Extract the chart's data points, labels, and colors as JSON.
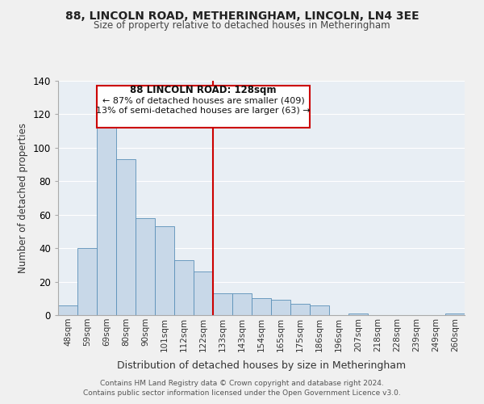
{
  "title_line1": "88, LINCOLN ROAD, METHERINGHAM, LINCOLN, LN4 3EE",
  "title_line2": "Size of property relative to detached houses in Metheringham",
  "xlabel": "Distribution of detached houses by size in Metheringham",
  "ylabel": "Number of detached properties",
  "footer_line1": "Contains HM Land Registry data © Crown copyright and database right 2024.",
  "footer_line2": "Contains public sector information licensed under the Open Government Licence v3.0.",
  "bar_labels": [
    "48sqm",
    "59sqm",
    "69sqm",
    "80sqm",
    "90sqm",
    "101sqm",
    "112sqm",
    "122sqm",
    "133sqm",
    "143sqm",
    "154sqm",
    "165sqm",
    "175sqm",
    "186sqm",
    "196sqm",
    "207sqm",
    "218sqm",
    "228sqm",
    "239sqm",
    "249sqm",
    "260sqm"
  ],
  "bar_values": [
    6,
    40,
    115,
    93,
    58,
    53,
    33,
    26,
    13,
    13,
    10,
    9,
    7,
    6,
    0,
    1,
    0,
    0,
    0,
    0,
    1
  ],
  "bar_color": "#c8d8e8",
  "bar_edge_color": "#5a90b8",
  "ylim": [
    0,
    140
  ],
  "yticks": [
    0,
    20,
    40,
    60,
    80,
    100,
    120,
    140
  ],
  "vline_x_index": 7.5,
  "vline_color": "#cc0000",
  "annotation_title": "88 LINCOLN ROAD: 128sqm",
  "annotation_line1": "← 87% of detached houses are smaller (409)",
  "annotation_line2": "13% of semi-detached houses are larger (63) →",
  "annotation_box_color": "#cc0000",
  "background_color": "#f0f0f0",
  "plot_bg_color": "#e8eef4"
}
